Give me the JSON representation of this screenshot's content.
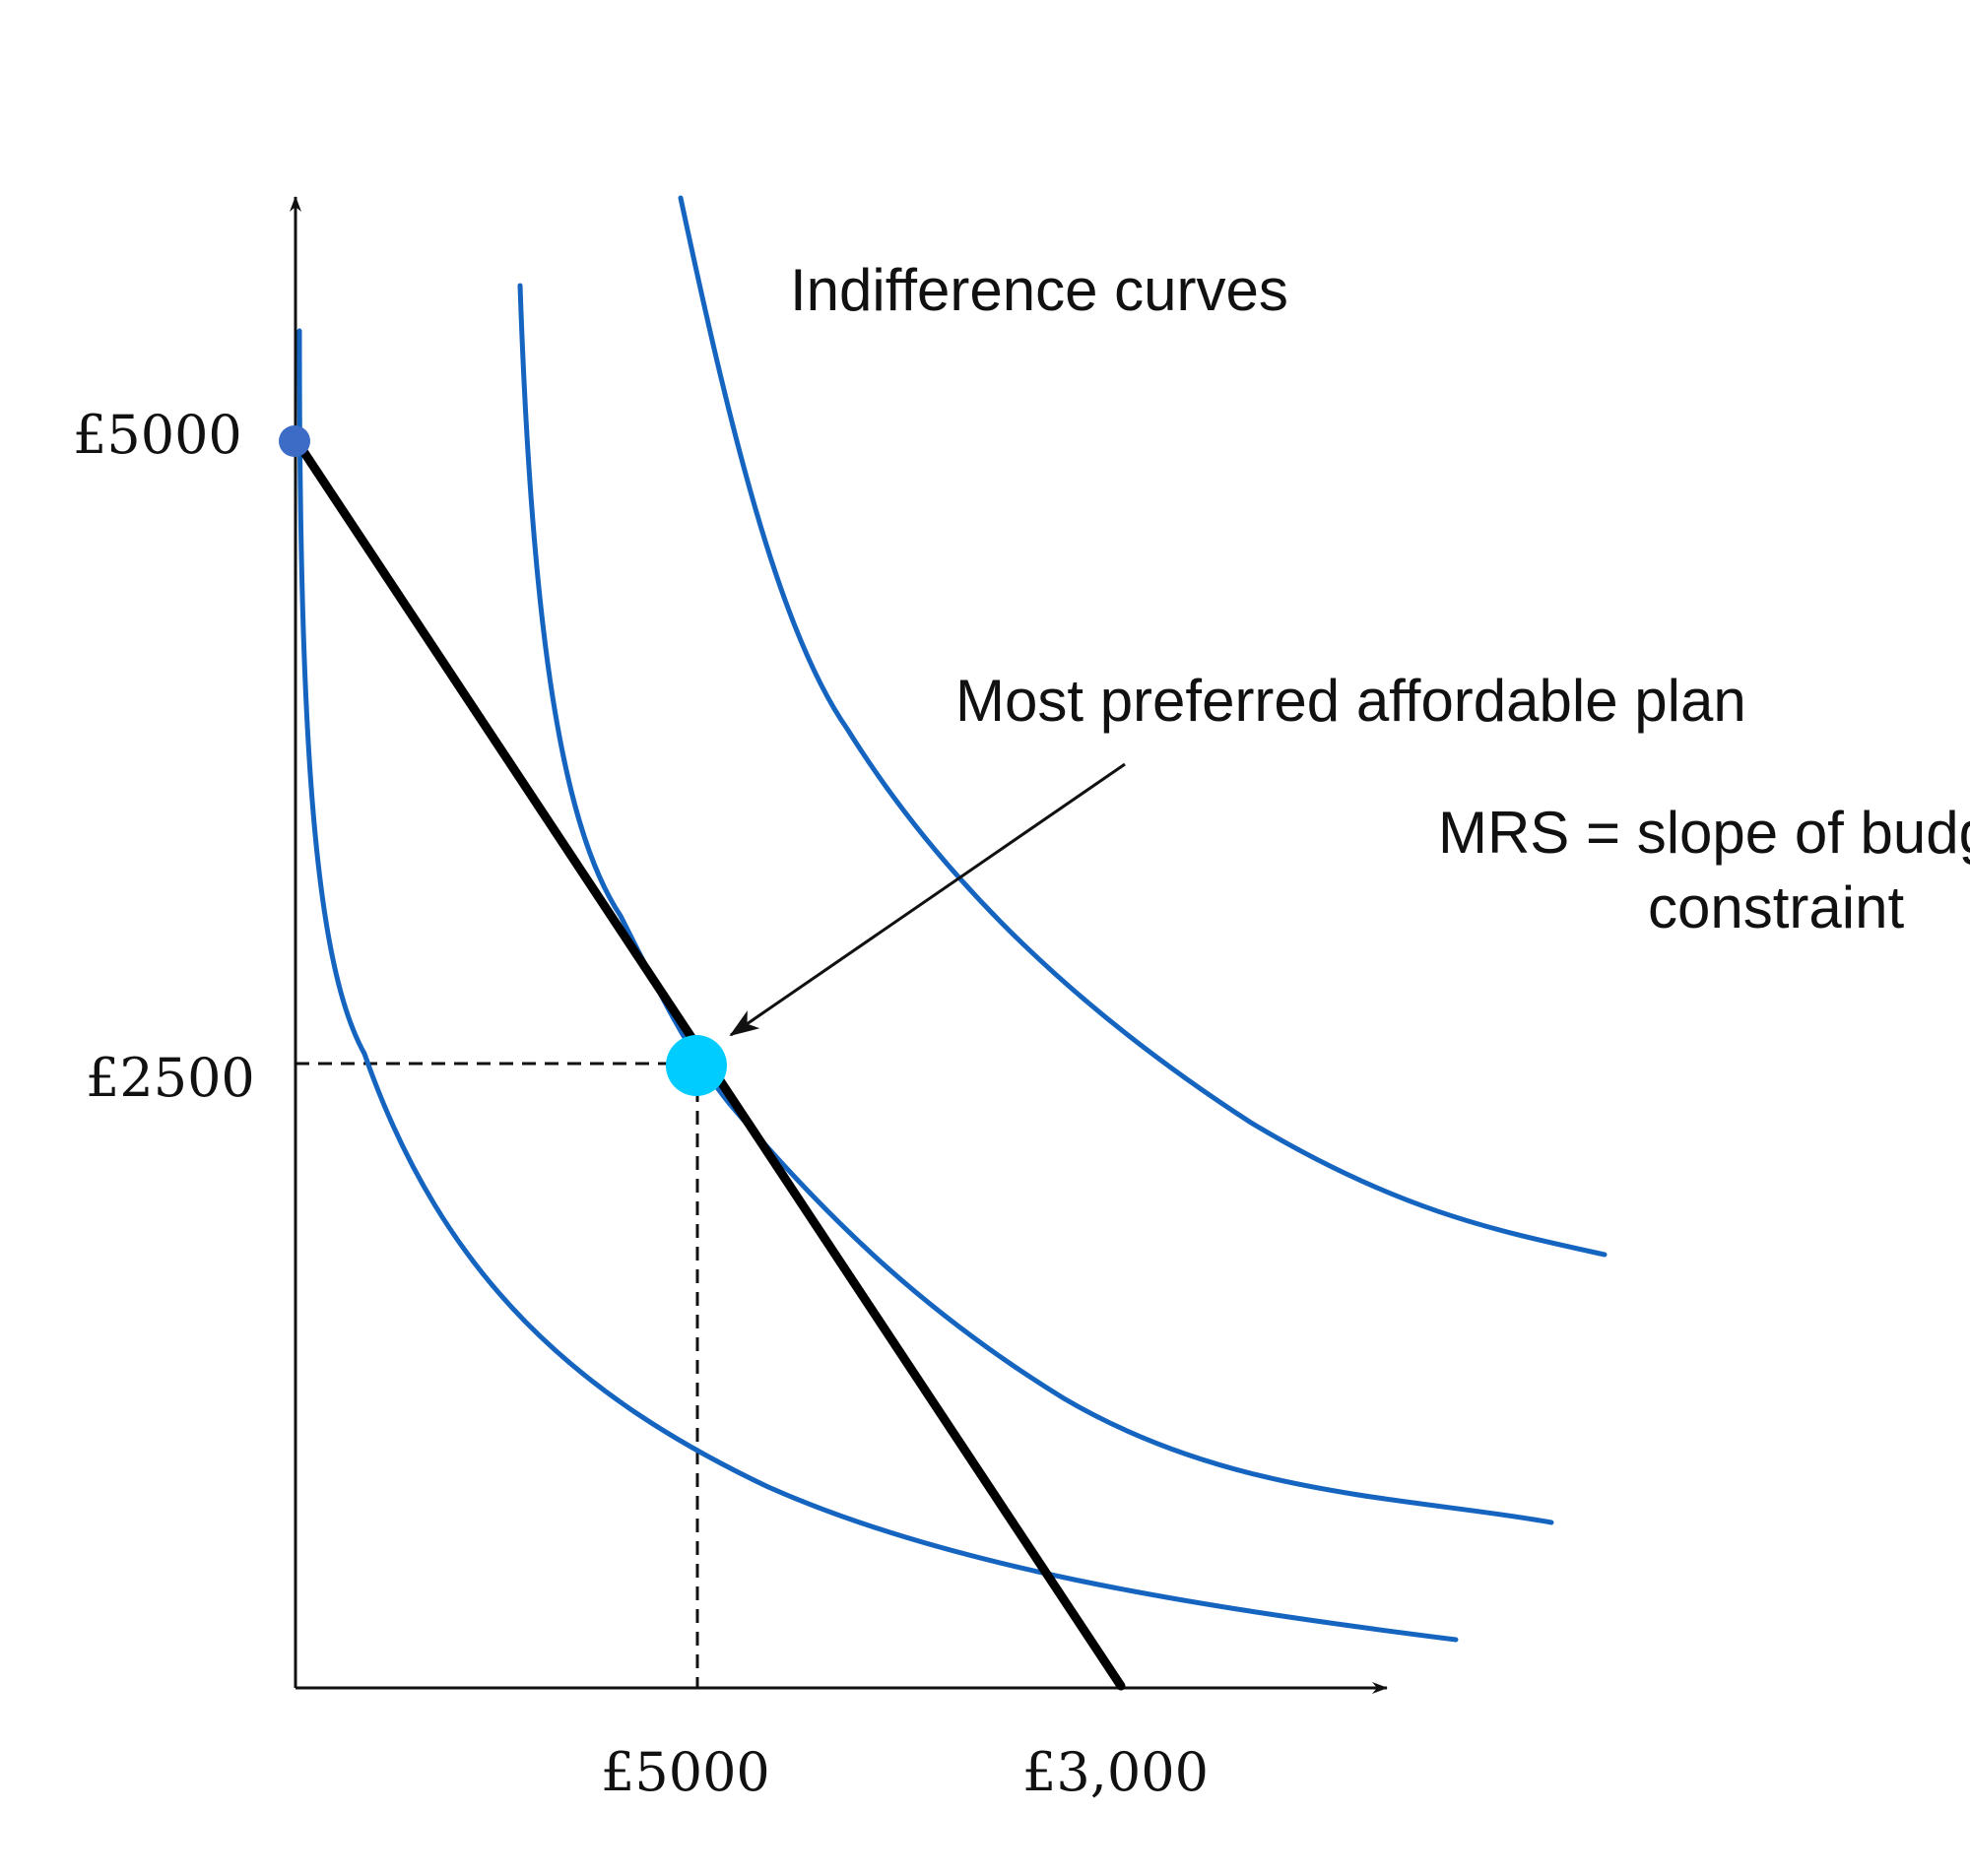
{
  "labels": {
    "y_tick_top": "£5000",
    "y_tick_mid": "£2500",
    "x_tick_mid": "£5000",
    "x_tick_right": "£3,000",
    "curves_title": "Indifference curves",
    "optimum_note": "Most preferred affordable plan",
    "mrs_line1": "MRS = slope of budget",
    "mrs_line2": "constraint"
  },
  "colors": {
    "curve": "#1565c0",
    "optimum_point": "#00ccff",
    "intercept_point": "#3d6cc6",
    "budget_line": "#000000"
  }
}
